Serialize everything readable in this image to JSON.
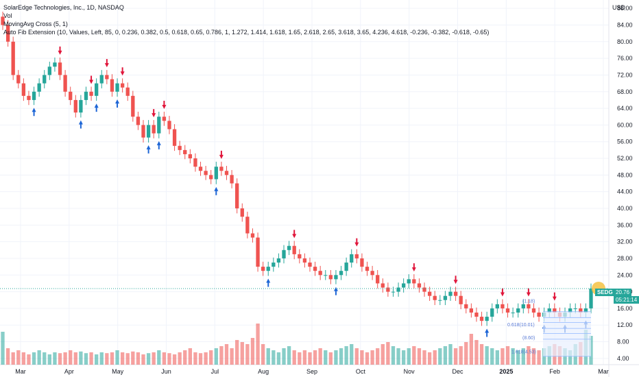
{
  "legend": {
    "title": "SolarEdge Technologies, Inc., 1D, NASDAQ",
    "vol": "Vol",
    "ma": "MovingAvg Cross (5, 1)",
    "fib": "Auto Fib Extension (10, Values, Left, 85, 0, 0.236, 0.382, 0.5, 0.618, 0.65, 0.786, 1, 1.272, 1.414, 1.618, 1.65, 2.618, 2.65, 3.618, 3.65, 4.236, 4.618, -0.236, -0.382, -0.618, -0.65)"
  },
  "currency": "USD",
  "ticker_badge": "SEDG",
  "price_badge": "20.76",
  "time_badge": "05:21:14",
  "colors": {
    "up": "#26a69a",
    "down": "#ef5350",
    "arrow_up": "#1e66d6",
    "arrow_down": "#e0163b",
    "badge": "#26a69a"
  },
  "fib_labels": [
    "(1.18)",
    "0.618(10.01)",
    "(8.60)",
    "1.618(4.53)"
  ],
  "chart_data": {
    "type": "candlestick",
    "title": "SolarEdge Technologies, Inc., 1D, NASDAQ",
    "ylim": [
      2.5,
      90
    ],
    "y_ticks": [
      4,
      8,
      12,
      16,
      20,
      24,
      28,
      32,
      36,
      40,
      44,
      48,
      52,
      56,
      60,
      64,
      68,
      72,
      76,
      80,
      84,
      88
    ],
    "y_tick_labels": [
      "4.00",
      "8.00",
      "12.00",
      "16.00",
      "20.00",
      "24.00",
      "28.00",
      "32.00",
      "36.00",
      "40.00",
      "44.00",
      "48.00",
      "52.00",
      "56.00",
      "60.00",
      "64.00",
      "68.00",
      "72.00",
      "76.00",
      "80.00",
      "84.00",
      "88.00"
    ],
    "x_tick_labels": [
      "Mar",
      "Apr",
      "May",
      "Jun",
      "Jul",
      "Aug",
      "Sep",
      "Oct",
      "Nov",
      "Dec",
      "2025",
      "Feb",
      "Mar"
    ],
    "last_price": 20.76,
    "close_series": [
      84,
      80,
      72,
      70,
      67,
      66,
      68,
      70,
      72,
      74,
      75,
      72,
      68,
      66,
      63,
      66,
      68,
      67,
      70,
      72,
      71,
      68,
      70,
      69,
      67,
      62,
      60,
      57,
      60,
      58,
      62,
      61,
      59,
      55,
      54,
      53,
      52,
      50,
      49,
      48,
      47,
      50,
      49,
      48,
      46,
      40,
      38,
      34,
      33,
      26,
      25,
      26,
      27,
      28,
      30,
      31,
      29,
      28,
      27,
      26,
      25,
      24,
      24,
      23,
      24,
      25,
      27,
      29,
      28,
      26,
      25,
      24,
      22,
      21,
      20,
      20,
      21,
      22,
      23,
      22,
      21,
      20,
      19,
      18,
      18,
      19,
      20,
      19,
      17,
      16,
      15,
      14,
      13,
      14,
      16,
      17,
      16,
      15,
      15,
      16,
      17,
      16,
      15,
      14,
      15,
      16,
      15,
      14,
      15,
      16,
      16,
      15,
      16,
      20.76
    ],
    "volume_series": [
      0.8,
      0.4,
      0.3,
      0.35,
      0.3,
      0.25,
      0.3,
      0.35,
      0.3,
      0.25,
      0.3,
      0.28,
      0.3,
      0.35,
      0.3,
      0.32,
      0.28,
      0.3,
      0.25,
      0.3,
      0.28,
      0.3,
      0.35,
      0.3,
      0.28,
      0.32,
      0.3,
      0.25,
      0.28,
      0.3,
      0.35,
      0.3,
      0.28,
      0.25,
      0.3,
      0.35,
      0.4,
      0.3,
      0.28,
      0.3,
      0.35,
      0.4,
      0.45,
      0.5,
      0.4,
      0.6,
      0.55,
      0.5,
      0.65,
      1.0,
      0.5,
      0.4,
      0.35,
      0.3,
      0.4,
      0.45,
      0.35,
      0.3,
      0.35,
      0.3,
      0.35,
      0.4,
      0.35,
      0.3,
      0.35,
      0.4,
      0.45,
      0.5,
      0.4,
      0.35,
      0.3,
      0.35,
      0.4,
      0.5,
      0.55,
      0.45,
      0.4,
      0.35,
      0.4,
      0.45,
      0.4,
      0.35,
      0.3,
      0.35,
      0.4,
      0.45,
      0.5,
      0.4,
      0.45,
      0.55,
      0.75,
      0.6,
      0.5,
      0.45,
      0.4,
      0.35,
      0.4,
      0.45,
      0.4,
      0.35,
      0.4,
      0.45,
      0.4,
      0.35,
      0.4,
      0.45,
      0.5,
      0.45,
      0.4,
      0.35,
      0.5,
      0.55,
      0.85,
      0.7
    ],
    "grid": true,
    "legend_position": "top-left"
  }
}
